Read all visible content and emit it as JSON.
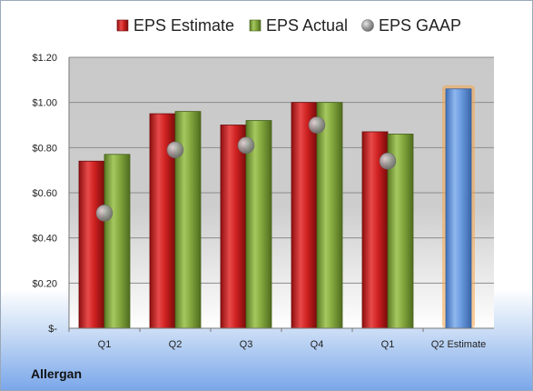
{
  "company": "Allergan",
  "chart_data": {
    "type": "bar",
    "categories": [
      "Q1",
      "Q2",
      "Q3",
      "Q4",
      "Q1",
      "Q2 Estimate"
    ],
    "series": [
      {
        "name": "EPS Estimate",
        "values": [
          0.74,
          0.95,
          0.9,
          1.0,
          0.87,
          null
        ]
      },
      {
        "name": "EPS Actual",
        "values": [
          0.77,
          0.96,
          0.92,
          1.0,
          0.86,
          null
        ]
      },
      {
        "name": "EPS GAAP",
        "type": "scatter",
        "values": [
          0.51,
          0.79,
          0.81,
          0.9,
          0.74,
          null
        ]
      },
      {
        "name": "",
        "values": [
          null,
          null,
          null,
          null,
          null,
          1.06
        ]
      }
    ],
    "ylim": [
      0,
      1.2
    ],
    "yticks": [
      0,
      0.2,
      0.4,
      0.6,
      0.8,
      1.0,
      1.2
    ],
    "ytick_labels": [
      "$-",
      "$0.20",
      "$0.40",
      "$0.60",
      "$0.80",
      "$1.00",
      "$1.20"
    ],
    "grid": true,
    "legend": "top",
    "colors": {
      "estimate": "#cc1f1f",
      "actual": "#7fa33a",
      "gaap": "#9a9a9a",
      "forecast": "#5b8fd6",
      "forecast_glow": "#f5a64a"
    }
  }
}
